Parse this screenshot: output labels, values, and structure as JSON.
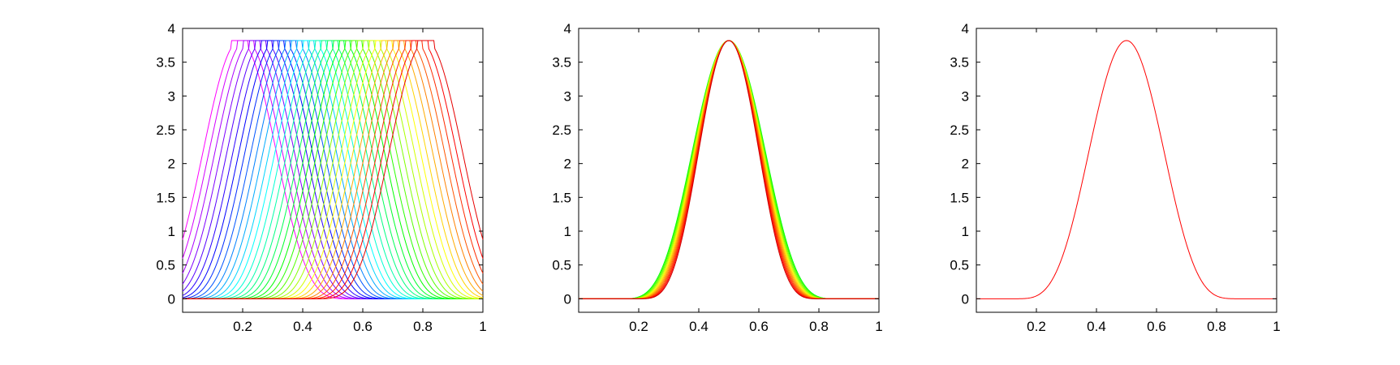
{
  "chart_data": [
    {
      "type": "line",
      "title": "",
      "xlabel": "",
      "ylabel": "",
      "xlim": [
        0,
        1
      ],
      "ylim": [
        -0.2,
        4
      ],
      "xticks": [
        0.2,
        0.4,
        0.6,
        0.8,
        1
      ],
      "xtick_labels": [
        "0.2",
        "0.4",
        "0.6",
        "0.8",
        "1"
      ],
      "yticks": [
        0,
        0.5,
        1,
        1.5,
        2,
        2.5,
        3,
        3.5,
        4
      ],
      "ytick_labels": [
        "0",
        "0.5",
        "1",
        "1.5",
        "2",
        "2.5",
        "3",
        "3.5",
        "4"
      ],
      "grid": false,
      "legend": "none",
      "color_sequence": "magenta-blue-cyan-green-yellow-red",
      "series": [
        {
          "color": "#ff00ff",
          "peak_x": 0.19,
          "peak_y": 3.82
        },
        {
          "color": "#d400ff",
          "peak_x": 0.21,
          "peak_y": 3.82
        },
        {
          "color": "#aa00ff",
          "peak_x": 0.23,
          "peak_y": 3.82
        },
        {
          "color": "#7f00ff",
          "peak_x": 0.25,
          "peak_y": 3.82
        },
        {
          "color": "#5500ff",
          "peak_x": 0.27,
          "peak_y": 3.82
        },
        {
          "color": "#2a00ff",
          "peak_x": 0.29,
          "peak_y": 3.82
        },
        {
          "color": "#0000ff",
          "peak_x": 0.31,
          "peak_y": 3.82
        },
        {
          "color": "#002bff",
          "peak_x": 0.33,
          "peak_y": 3.82
        },
        {
          "color": "#0055ff",
          "peak_x": 0.35,
          "peak_y": 3.82
        },
        {
          "color": "#0080ff",
          "peak_x": 0.37,
          "peak_y": 3.82
        },
        {
          "color": "#00aaff",
          "peak_x": 0.39,
          "peak_y": 3.82
        },
        {
          "color": "#00d4ff",
          "peak_x": 0.41,
          "peak_y": 3.82
        },
        {
          "color": "#00ffff",
          "peak_x": 0.43,
          "peak_y": 3.82
        },
        {
          "color": "#00ffd4",
          "peak_x": 0.45,
          "peak_y": 3.82
        },
        {
          "color": "#00ffaa",
          "peak_x": 0.47,
          "peak_y": 3.82
        },
        {
          "color": "#00ff80",
          "peak_x": 0.49,
          "peak_y": 3.82
        },
        {
          "color": "#00ff55",
          "peak_x": 0.51,
          "peak_y": 3.82
        },
        {
          "color": "#00ff2b",
          "peak_x": 0.53,
          "peak_y": 3.82
        },
        {
          "color": "#00ff00",
          "peak_x": 0.55,
          "peak_y": 3.82
        },
        {
          "color": "#2aff00",
          "peak_x": 0.57,
          "peak_y": 3.82
        },
        {
          "color": "#55ff00",
          "peak_x": 0.59,
          "peak_y": 3.82
        },
        {
          "color": "#80ff00",
          "peak_x": 0.61,
          "peak_y": 3.82
        },
        {
          "color": "#aaff00",
          "peak_x": 0.63,
          "peak_y": 3.82
        },
        {
          "color": "#d4ff00",
          "peak_x": 0.65,
          "peak_y": 3.82
        },
        {
          "color": "#ffff00",
          "peak_x": 0.67,
          "peak_y": 3.82
        },
        {
          "color": "#ffd400",
          "peak_x": 0.69,
          "peak_y": 3.82
        },
        {
          "color": "#ffaa00",
          "peak_x": 0.71,
          "peak_y": 3.82
        },
        {
          "color": "#ff8000",
          "peak_x": 0.73,
          "peak_y": 3.82
        },
        {
          "color": "#ff5500",
          "peak_x": 0.75,
          "peak_y": 3.82
        },
        {
          "color": "#ff2a00",
          "peak_x": 0.77,
          "peak_y": 3.82
        },
        {
          "color": "#ff0000",
          "peak_x": 0.79,
          "peak_y": 3.82
        },
        {
          "color": "#e60000",
          "peak_x": 0.81,
          "peak_y": 3.82
        }
      ]
    },
    {
      "type": "line",
      "title": "",
      "xlabel": "",
      "ylabel": "",
      "xlim": [
        0,
        1
      ],
      "ylim": [
        -0.2,
        4
      ],
      "xticks": [
        0.2,
        0.4,
        0.6,
        0.8,
        1
      ],
      "xtick_labels": [
        "0.2",
        "0.4",
        "0.6",
        "0.8",
        "1"
      ],
      "yticks": [
        0,
        0.5,
        1,
        1.5,
        2,
        2.5,
        3,
        3.5,
        4
      ],
      "ytick_labels": [
        "0",
        "0.5",
        "1",
        "1.5",
        "2",
        "2.5",
        "3",
        "3.5",
        "4"
      ],
      "grid": false,
      "legend": "none",
      "series": [
        {
          "color": "#00ff00",
          "center_x": 0.5,
          "peak_y": 3.82,
          "support": [
            0.13,
            0.87
          ]
        },
        {
          "color": "#33ff00",
          "center_x": 0.5,
          "peak_y": 3.82,
          "support": [
            0.135,
            0.865
          ]
        },
        {
          "color": "#66ff00",
          "center_x": 0.5,
          "peak_y": 3.82,
          "support": [
            0.14,
            0.86
          ]
        },
        {
          "color": "#99ff00",
          "center_x": 0.5,
          "peak_y": 3.82,
          "support": [
            0.145,
            0.855
          ]
        },
        {
          "color": "#ccff00",
          "center_x": 0.5,
          "peak_y": 3.82,
          "support": [
            0.15,
            0.85
          ]
        },
        {
          "color": "#ffee00",
          "center_x": 0.5,
          "peak_y": 3.82,
          "support": [
            0.155,
            0.845
          ]
        },
        {
          "color": "#ffcc00",
          "center_x": 0.5,
          "peak_y": 3.82,
          "support": [
            0.16,
            0.84
          ]
        },
        {
          "color": "#ffaa00",
          "center_x": 0.5,
          "peak_y": 3.82,
          "support": [
            0.165,
            0.835
          ]
        },
        {
          "color": "#ff8800",
          "center_x": 0.5,
          "peak_y": 3.82,
          "support": [
            0.17,
            0.83
          ]
        },
        {
          "color": "#ff6600",
          "center_x": 0.5,
          "peak_y": 3.82,
          "support": [
            0.175,
            0.825
          ]
        },
        {
          "color": "#ff4400",
          "center_x": 0.5,
          "peak_y": 3.82,
          "support": [
            0.18,
            0.82
          ]
        },
        {
          "color": "#ff2200",
          "center_x": 0.5,
          "peak_y": 3.82,
          "support": [
            0.185,
            0.815
          ]
        },
        {
          "color": "#ff0000",
          "center_x": 0.5,
          "peak_y": 3.82,
          "support": [
            0.19,
            0.81
          ]
        },
        {
          "color": "#cc0000",
          "center_x": 0.5,
          "peak_y": 3.82,
          "support": [
            0.195,
            0.805
          ]
        }
      ]
    },
    {
      "type": "line",
      "title": "",
      "xlabel": "",
      "ylabel": "",
      "xlim": [
        0,
        1
      ],
      "ylim": [
        -0.2,
        4
      ],
      "xticks": [
        0.2,
        0.4,
        0.6,
        0.8,
        1
      ],
      "xtick_labels": [
        "0.2",
        "0.4",
        "0.6",
        "0.8",
        "1"
      ],
      "yticks": [
        0,
        0.5,
        1,
        1.5,
        2,
        2.5,
        3,
        3.5,
        4
      ],
      "ytick_labels": [
        "0",
        "0.5",
        "1",
        "1.5",
        "2",
        "2.5",
        "3",
        "3.5",
        "4"
      ],
      "grid": false,
      "legend": "none",
      "series": [
        {
          "color": "#ff0000",
          "center_x": 0.5,
          "peak_y": 3.82,
          "support": [
            0.12,
            0.88
          ]
        }
      ]
    }
  ]
}
